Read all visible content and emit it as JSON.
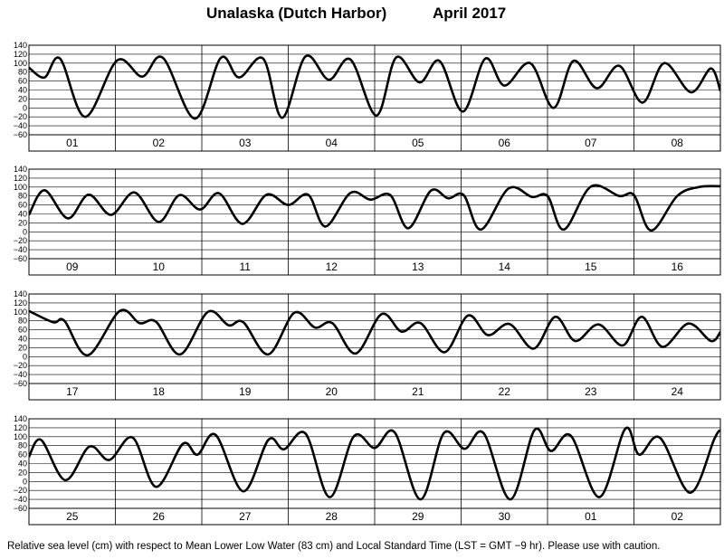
{
  "title": {
    "location": "Unalaska (Dutch Harbor)",
    "period": "April   2017"
  },
  "footer": "Relative sea level (cm) with respect to Mean Lower Low Water (83 cm) and Local Standard Time (LST = GMT −9 hr). Please use with caution.",
  "chart_data": [
    {
      "type": "line",
      "panel": 1,
      "x_unit": "day",
      "y_unit": "cm",
      "ylim": [
        -60,
        140
      ],
      "yticks": [
        -60,
        -40,
        -20,
        0,
        20,
        40,
        60,
        80,
        100,
        120,
        140
      ],
      "grid": true,
      "day_labels": [
        "01",
        "02",
        "03",
        "04",
        "05",
        "06",
        "07",
        "08"
      ],
      "series": [
        {
          "x": [
            0,
            0.18,
            0.36,
            0.65,
            1.02,
            1.31,
            1.55,
            1.92,
            2.22,
            2.43,
            2.71,
            2.93,
            3.2,
            3.47,
            3.72,
            4.02,
            4.25,
            4.52,
            4.75,
            5.02,
            5.28,
            5.5,
            5.8,
            6.07,
            6.3,
            6.57,
            6.83,
            7.1,
            7.35,
            7.66,
            7.89,
            8
          ],
          "y": [
            90,
            68,
            110,
            -20,
            106,
            70,
            112,
            -24,
            112,
            68,
            110,
            -22,
            115,
            63,
            108,
            -17,
            113,
            57,
            105,
            -8,
            110,
            50,
            100,
            0,
            105,
            44,
            94,
            12,
            100,
            35,
            88,
            38
          ]
        }
      ]
    },
    {
      "type": "line",
      "panel": 2,
      "x_unit": "day",
      "y_unit": "cm",
      "ylim": [
        -60,
        140
      ],
      "yticks": [
        -60,
        -40,
        -20,
        0,
        20,
        40,
        60,
        80,
        100,
        120,
        140
      ],
      "grid": true,
      "day_labels": [
        "09",
        "10",
        "11",
        "12",
        "13",
        "14",
        "15",
        "16"
      ],
      "series": [
        {
          "x": [
            0,
            0.18,
            0.45,
            0.69,
            0.95,
            1.22,
            1.5,
            1.74,
            1.98,
            2.2,
            2.47,
            2.75,
            3.0,
            3.23,
            3.43,
            3.72,
            3.95,
            4.18,
            4.39,
            4.65,
            4.85,
            5.03,
            5.23,
            5.55,
            5.82,
            6.0,
            6.19,
            6.5,
            6.83,
            7.0,
            7.2,
            7.5,
            7.75,
            8
          ],
          "y": [
            38,
            93,
            30,
            83,
            38,
            88,
            22,
            82,
            50,
            86,
            18,
            83,
            60,
            83,
            12,
            87,
            72,
            82,
            8,
            92,
            75,
            82,
            5,
            97,
            78,
            80,
            5,
            101,
            80,
            82,
            3,
            80,
            100,
            102
          ]
        }
      ]
    },
    {
      "type": "line",
      "panel": 3,
      "x_unit": "day",
      "y_unit": "cm",
      "ylim": [
        -60,
        140
      ],
      "yticks": [
        -60,
        -40,
        -20,
        0,
        20,
        40,
        60,
        80,
        100,
        120,
        140
      ],
      "grid": true,
      "day_labels": [
        "17",
        "18",
        "19",
        "20",
        "21",
        "22",
        "23",
        "24"
      ],
      "series": [
        {
          "x": [
            0,
            0.28,
            0.41,
            0.68,
            1.05,
            1.28,
            1.47,
            1.75,
            2.07,
            2.31,
            2.48,
            2.77,
            3.07,
            3.31,
            3.51,
            3.78,
            4.08,
            4.31,
            4.53,
            4.81,
            5.08,
            5.31,
            5.56,
            5.84,
            6.09,
            6.32,
            6.59,
            6.87,
            7.09,
            7.33,
            7.63,
            7.89,
            8
          ],
          "y": [
            102,
            77,
            80,
            3,
            102,
            75,
            78,
            5,
            100,
            70,
            77,
            5,
            98,
            65,
            75,
            7,
            95,
            56,
            75,
            10,
            92,
            48,
            73,
            18,
            89,
            35,
            72,
            25,
            89,
            22,
            74,
            35,
            55
          ]
        }
      ]
    },
    {
      "type": "line",
      "panel": 4,
      "x_unit": "day",
      "y_unit": "cm",
      "ylim": [
        -60,
        140
      ],
      "yticks": [
        -60,
        -40,
        -20,
        0,
        20,
        40,
        60,
        80,
        100,
        120,
        140
      ],
      "grid": true,
      "day_labels": [
        "25",
        "26",
        "27",
        "28",
        "29",
        "30",
        "01",
        "02"
      ],
      "series": [
        {
          "x": [
            0,
            0.14,
            0.42,
            0.7,
            0.93,
            1.2,
            1.47,
            1.78,
            1.95,
            2.16,
            2.48,
            2.77,
            2.95,
            3.2,
            3.48,
            3.76,
            4.0,
            4.23,
            4.53,
            4.8,
            5.04,
            5.26,
            5.57,
            5.85,
            6.04,
            6.27,
            6.6,
            6.9,
            7.06,
            7.3,
            7.65,
            7.93,
            8
          ],
          "y": [
            55,
            93,
            3,
            78,
            48,
            98,
            -12,
            84,
            60,
            104,
            -22,
            93,
            72,
            107,
            -35,
            101,
            75,
            110,
            -40,
            108,
            73,
            108,
            -40,
            115,
            68,
            102,
            -35,
            118,
            60,
            98,
            -25,
            95,
            115
          ]
        }
      ]
    }
  ]
}
